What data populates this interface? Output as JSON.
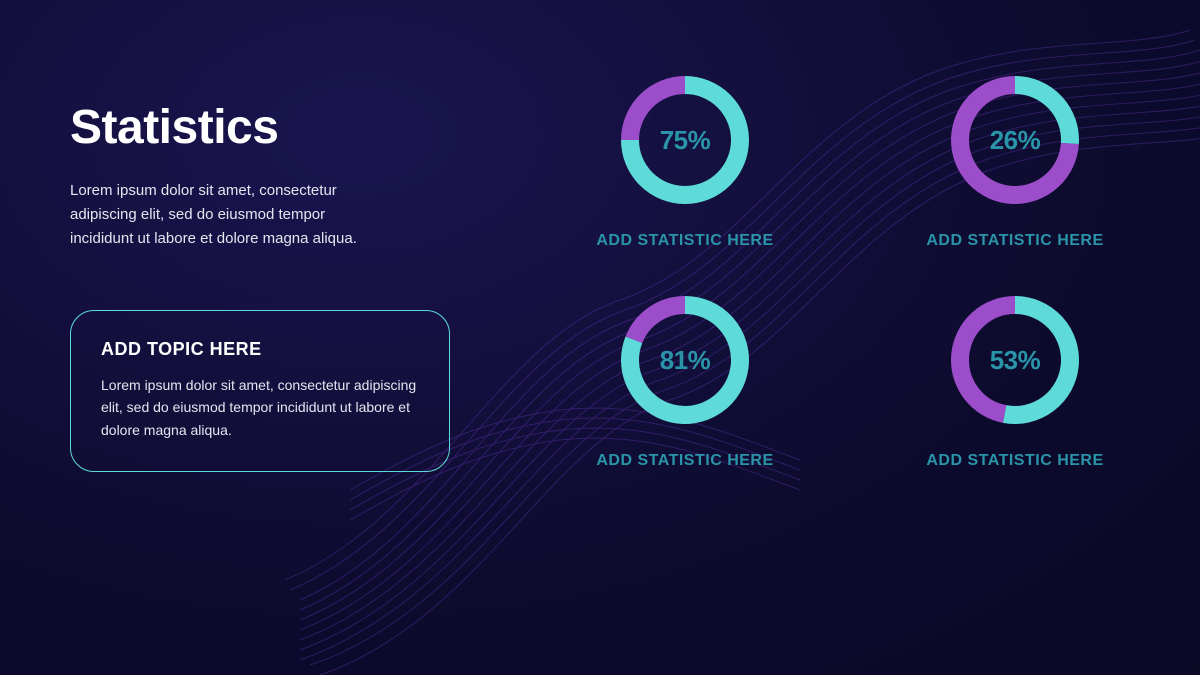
{
  "colors": {
    "background_start": "#1a1550",
    "background_end": "#0a0825",
    "wave_stroke": "#7a3fd6",
    "text_primary": "#ffffff",
    "text_body": "#e5e5f0",
    "cyan": "#5edbd8",
    "purple": "#9b4dca",
    "stat_text": "#2a94a8",
    "topic_border": "#5edbd8"
  },
  "typography": {
    "title_fontsize": 48,
    "title_weight": 900,
    "body_fontsize": 15,
    "topic_title_fontsize": 18,
    "stat_value_fontsize": 26,
    "stat_label_fontsize": 16
  },
  "header": {
    "title": "Statistics",
    "description": "Lorem ipsum dolor sit amet, consectetur adipiscing elit, sed do eiusmod tempor incididunt ut labore et dolore magna aliqua."
  },
  "topic_box": {
    "title": "ADD TOPIC HERE",
    "description": "Lorem ipsum dolor sit amet, consectetur adipiscing elit, sed do eiusmod tempor incididunt ut labore et dolore magna aliqua."
  },
  "donut": {
    "radius": 55,
    "stroke_width": 18,
    "start_angle_deg": -90,
    "primary_color": "#5edbd8",
    "secondary_color": "#9b4dca"
  },
  "stats": [
    {
      "value": 75,
      "display": "75%",
      "label": "ADD STATISTIC HERE"
    },
    {
      "value": 26,
      "display": "26%",
      "label": "ADD STATISTIC HERE"
    },
    {
      "value": 81,
      "display": "81%",
      "label": "ADD STATISTIC HERE"
    },
    {
      "value": 53,
      "display": "53%",
      "label": "ADD STATISTIC HERE"
    }
  ]
}
